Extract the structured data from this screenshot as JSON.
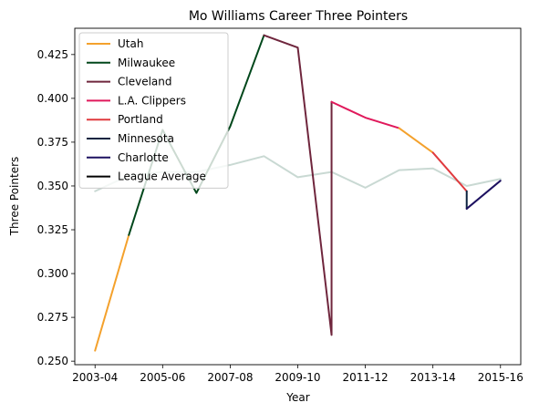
{
  "chart_data": {
    "type": "line",
    "title": "Mo Williams Career Three Pointers",
    "xlabel": "Year",
    "ylabel": "Three Pointers",
    "x_tick_labels": [
      "2003-04",
      "2005-06",
      "2007-08",
      "2009-10",
      "2011-12",
      "2013-14",
      "2015-16"
    ],
    "y_ticks": [
      "0.250",
      "0.275",
      "0.300",
      "0.325",
      "0.350",
      "0.375",
      "0.400",
      "0.425"
    ],
    "xlim": [
      "2003-04",
      "2015-16"
    ],
    "ylim": [
      0.248,
      0.44
    ],
    "grid": false,
    "legend_position": "top-left",
    "series": [
      {
        "name": "Utah",
        "color": "#f4a12c",
        "points": [
          [
            "2003-04",
            0.256
          ],
          [
            "2004-05",
            0.322
          ]
        ]
      },
      {
        "name": "Milwaukee",
        "color": "#00471b",
        "points": [
          [
            "2004-05",
            0.322
          ],
          [
            "2005-06",
            0.382
          ],
          [
            "2006-07",
            0.346
          ],
          [
            "2007-08",
            0.384
          ],
          [
            "2008-09",
            0.436
          ]
        ]
      },
      {
        "name": "Cleveland",
        "color": "#6f263d",
        "points": [
          [
            "2008-09",
            0.436
          ],
          [
            "2009-10",
            0.429
          ],
          [
            "2010-11",
            0.265
          ],
          [
            "2010-11",
            0.398
          ]
        ]
      },
      {
        "name": "L.A. Clippers",
        "color": "#e0195b",
        "points": [
          [
            "2010-11",
            0.398
          ],
          [
            "2011-12",
            0.389
          ],
          [
            "2012-13",
            0.383
          ]
        ]
      },
      {
        "name": "Utah",
        "color": "#f4a12c",
        "points": [
          [
            "2012-13",
            0.383
          ],
          [
            "2013-14",
            0.369
          ]
        ]
      },
      {
        "name": "Portland",
        "color": "#e03a3e",
        "points": [
          [
            "2013-14",
            0.369
          ],
          [
            "2014-15",
            0.347
          ]
        ]
      },
      {
        "name": "Minnesota",
        "color": "#0c2340",
        "points": [
          [
            "2014-15",
            0.347
          ],
          [
            "2014-15",
            0.337
          ]
        ]
      },
      {
        "name": "Charlotte",
        "color": "#1d1160",
        "points": [
          [
            "2014-15",
            0.337
          ],
          [
            "2015-16",
            0.353
          ]
        ]
      },
      {
        "name": "League Average",
        "color": "#000000",
        "points": [
          [
            "2003-04",
            0.347
          ],
          [
            "2004-05",
            0.356
          ],
          [
            "2005-06",
            0.358
          ],
          [
            "2006-07",
            0.358
          ],
          [
            "2007-08",
            0.362
          ],
          [
            "2008-09",
            0.367
          ],
          [
            "2009-10",
            0.355
          ],
          [
            "2010-11",
            0.358
          ],
          [
            "2011-12",
            0.349
          ],
          [
            "2012-13",
            0.359
          ],
          [
            "2013-14",
            0.36
          ],
          [
            "2014-15",
            0.35
          ],
          [
            "2015-16",
            0.354
          ]
        ]
      }
    ],
    "legend": [
      {
        "label": "Utah",
        "color": "#f4a12c"
      },
      {
        "label": "Milwaukee",
        "color": "#00471b"
      },
      {
        "label": "Cleveland",
        "color": "#6f263d"
      },
      {
        "label": "L.A. Clippers",
        "color": "#e0195b"
      },
      {
        "label": "Portland",
        "color": "#e03a3e"
      },
      {
        "label": "Minnesota",
        "color": "#0c2340"
      },
      {
        "label": "Charlotte",
        "color": "#1d1160"
      },
      {
        "label": "League Average",
        "color": "#000000"
      }
    ]
  }
}
